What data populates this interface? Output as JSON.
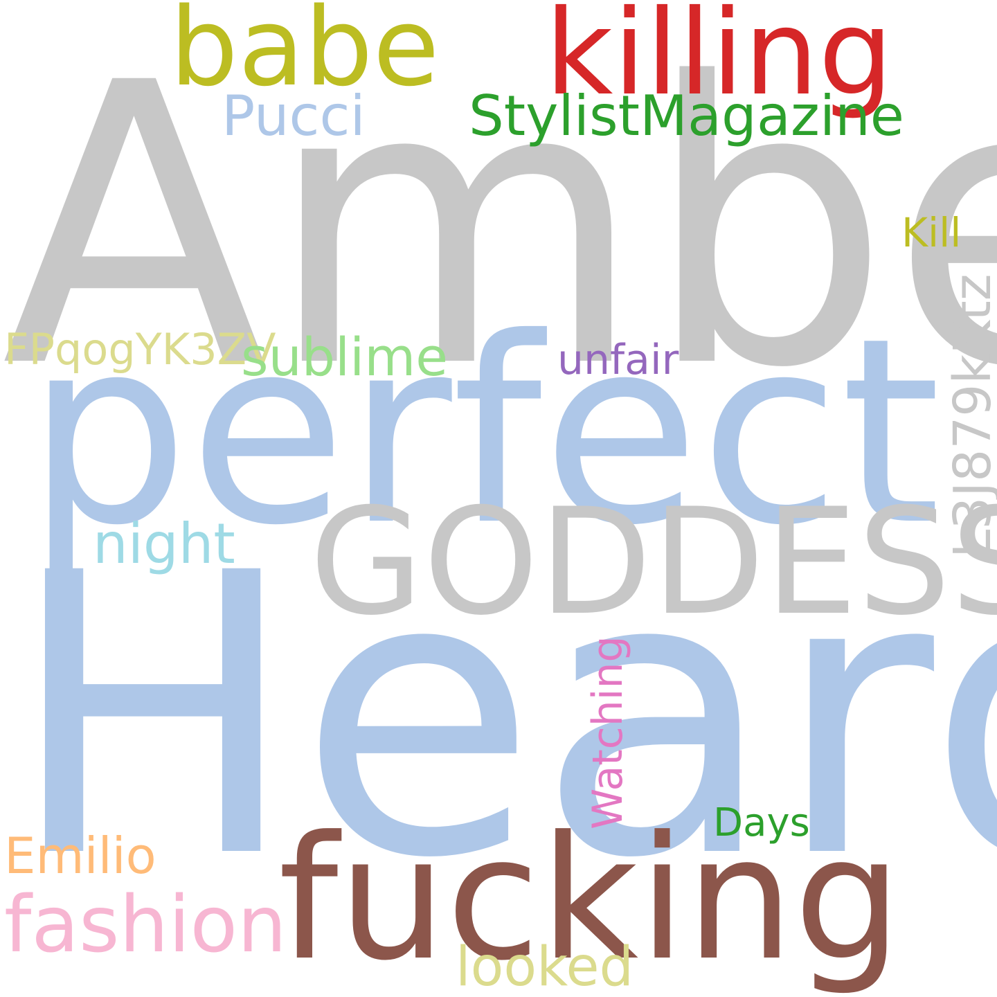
{
  "word_cloud": {
    "words": [
      {
        "key": "amber",
        "text": "Amber",
        "color": "#c7c7c7"
      },
      {
        "key": "heard",
        "text": "Heard",
        "color": "#aec7e8"
      },
      {
        "key": "perfect",
        "text": "perfect",
        "color": "#aec7e8"
      },
      {
        "key": "goddess",
        "text": "GODDESS",
        "color": "#c7c7c7"
      },
      {
        "key": "fucking",
        "text": "fucking",
        "color": "#8c564b"
      },
      {
        "key": "killing",
        "text": "killing",
        "color": "#d62728"
      },
      {
        "key": "babe",
        "text": "babe",
        "color": "#bcbd22"
      },
      {
        "key": "stylist",
        "text": "StylistMagazine",
        "color": "#2ca02c"
      },
      {
        "key": "pucci",
        "text": "Pucci",
        "color": "#aec7e8"
      },
      {
        "key": "kill",
        "text": "Kill",
        "color": "#bcbd22"
      },
      {
        "key": "l3j",
        "text": "L3J879kKtz",
        "color": "#c7c7c7",
        "orientation": "vertical"
      },
      {
        "key": "fpq",
        "text": "FPqogYK3ZV",
        "color": "#dbdb8d"
      },
      {
        "key": "sublime",
        "text": "sublime",
        "color": "#98df8a"
      },
      {
        "key": "unfair",
        "text": "unfair",
        "color": "#9467bd"
      },
      {
        "key": "night",
        "text": "night",
        "color": "#9edae5"
      },
      {
        "key": "watching",
        "text": "Watching",
        "color": "#e377c2",
        "orientation": "vertical"
      },
      {
        "key": "days",
        "text": "Days",
        "color": "#2ca02c"
      },
      {
        "key": "emilio",
        "text": "Emilio",
        "color": "#ffbb78"
      },
      {
        "key": "fashion",
        "text": "fashion",
        "color": "#f7b6d2"
      },
      {
        "key": "looked",
        "text": "looked",
        "color": "#dbdb8d"
      }
    ]
  }
}
